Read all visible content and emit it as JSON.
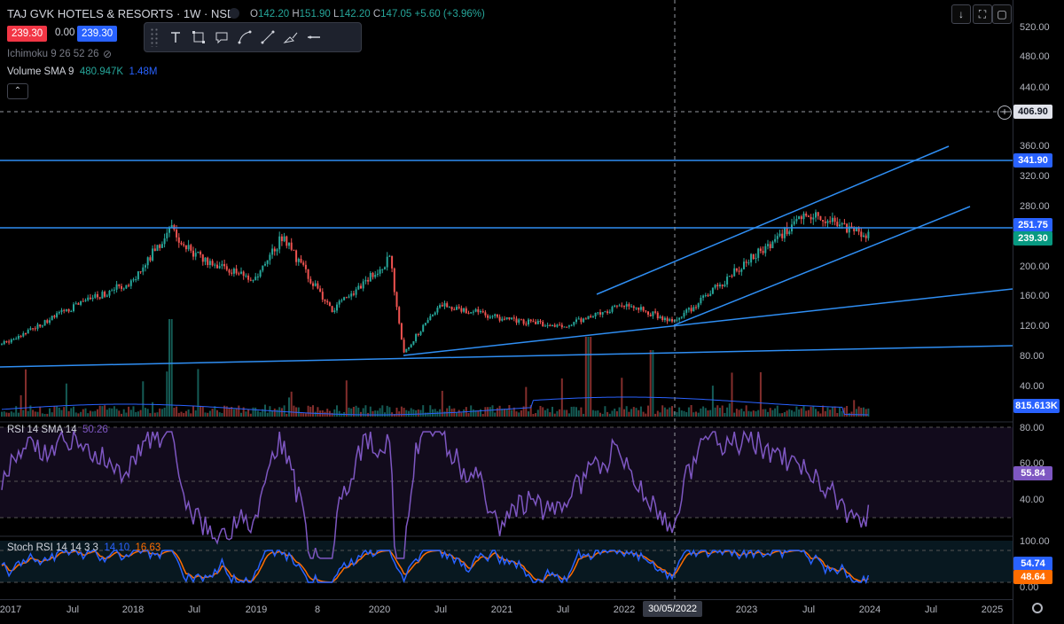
{
  "header": {
    "symbol_title": "TAJ GVK HOTELS & RESORTS · 1W · NSE",
    "o_label": "O",
    "o_value": "142.20",
    "h_label": "H",
    "h_value": "151.90",
    "l_label": "L",
    "l_value": "142.20",
    "c_label": "C",
    "c_value": "147.05",
    "change": "+5.60 (+3.96%)",
    "sell_price": "239.30",
    "spread": "0.00",
    "buy_price": "239.30"
  },
  "indicators": {
    "ichimoku": "Ichimoku 9 26 52 26",
    "volume_name": "Volume SMA 9",
    "volume_v1": "480.947K",
    "volume_v2": "1.48M",
    "rsi_name": "RSI 14 SMA 14",
    "rsi_value": "50.26",
    "stoch_name": "Stoch RSI 14 14 3 3",
    "stoch_k": "14.10",
    "stoch_d": "16.63"
  },
  "toolbar": {
    "tools": [
      "grip-icon",
      "text-tool-icon",
      "rectangle-tool-icon",
      "callout-tool-icon",
      "curve-tool-icon",
      "line-tool-icon",
      "brush-tool-icon",
      "line-style-icon"
    ]
  },
  "top_right_buttons": [
    "arrow-down-icon",
    "fullscreen-icon",
    "screenshot-icon"
  ],
  "price_axis": {
    "ticks": [
      "520.00",
      "480.00",
      "440.00",
      "360.00",
      "320.00",
      "280.00",
      "200.00",
      "160.00",
      "120.00",
      "80.00",
      "40.00"
    ],
    "crosshair_label": "406.90",
    "level_1": "341.90",
    "level_2": "251.75",
    "last_price": "239.30",
    "volume_sma_label": "815.613K"
  },
  "rsi_axis": {
    "ticks": [
      "80.00",
      "60.00",
      "40.00"
    ],
    "value": "55.84"
  },
  "stoch_axis": {
    "ticks": [
      "100.00",
      "0.00"
    ],
    "k_value": "54.74",
    "d_value": "48.64"
  },
  "time_axis": {
    "labels": [
      "2017",
      "Jul",
      "2018",
      "Jul",
      "2019",
      "8",
      "2020",
      "Jul",
      "2021",
      "Jul",
      "2022",
      "2023",
      "Jul",
      "2024",
      "Jul",
      "2025"
    ],
    "crosshair_date": "30/05/2022"
  },
  "colors": {
    "up": "#26a69a",
    "down": "#ef5350",
    "drawing": "#2f8ef3",
    "rsi": "#7e57c2",
    "stoch_k": "#2962ff",
    "stoch_d": "#ff6d00",
    "last_price_bg": "#089981",
    "level_bg": "#2962ff"
  },
  "chart_data": {
    "type": "candlestick",
    "title": "TAJ GVK HOTELS & RESORTS · 1W · NSE",
    "x_range": [
      "2017",
      "2024"
    ],
    "y_range": [
      40,
      520
    ],
    "approx_close_path": [
      {
        "x": "2017",
        "y": 95
      },
      {
        "x": "2017-Jul",
        "y": 145
      },
      {
        "x": "2018",
        "y": 180
      },
      {
        "x": "2018-Apr",
        "y": 250
      },
      {
        "x": "2018-Jul",
        "y": 215
      },
      {
        "x": "2019",
        "y": 180
      },
      {
        "x": "2019-Mar",
        "y": 240
      },
      {
        "x": "2019-Sep",
        "y": 140
      },
      {
        "x": "2020",
        "y": 210
      },
      {
        "x": "2020-Apr",
        "y": 85
      },
      {
        "x": "2020-Jul",
        "y": 150
      },
      {
        "x": "2021",
        "y": 130
      },
      {
        "x": "2021-Jul",
        "y": 120
      },
      {
        "x": "2022",
        "y": 150
      },
      {
        "x": "2022-May",
        "y": 125
      },
      {
        "x": "2023",
        "y": 205
      },
      {
        "x": "2023-Jul",
        "y": 270
      },
      {
        "x": "2024",
        "y": 239.3
      }
    ],
    "horizontal_levels": [
      341.9,
      251.75
    ],
    "last_price": 239.3,
    "rsi": {
      "latest": 55.84,
      "range": [
        20,
        80
      ]
    },
    "stoch_rsi": {
      "k": 54.74,
      "d": 48.64,
      "range": [
        0,
        100
      ]
    }
  }
}
